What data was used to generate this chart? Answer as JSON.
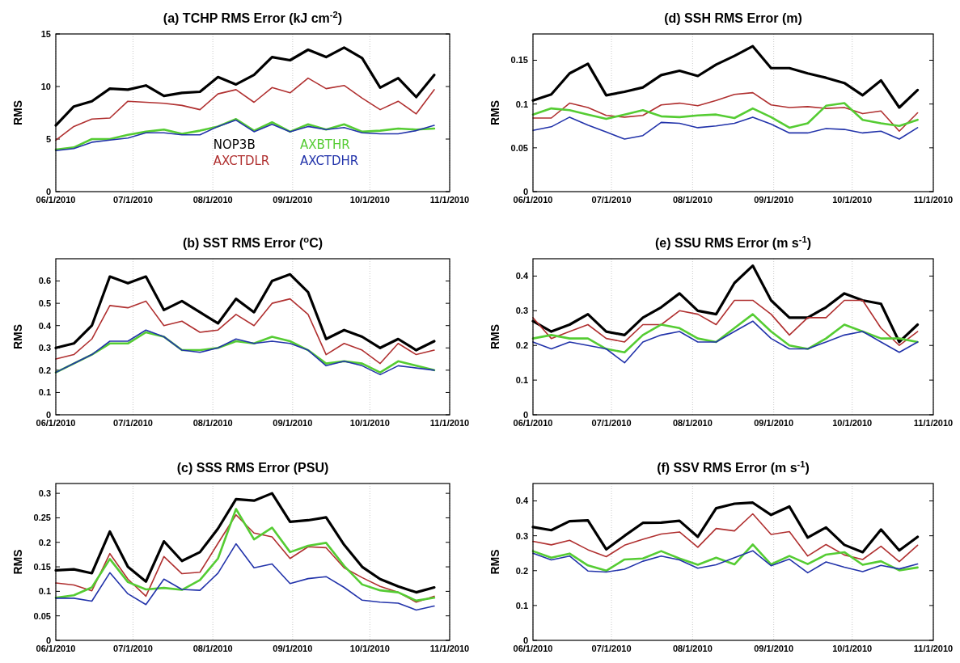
{
  "chart_data": [
    {
      "type": "line",
      "title": "(a) TCHP RMS Error (kJ cm$^{-2}$)",
      "ylabel": "RMS",
      "x": [
        "2010-06-01",
        "2010-06-08",
        "2010-06-15",
        "2010-06-22",
        "2010-06-29",
        "2010-07-06",
        "2010-07-13",
        "2010-07-20",
        "2010-07-27",
        "2010-08-03",
        "2010-08-10",
        "2010-08-17",
        "2010-08-24",
        "2010-08-31",
        "2010-09-07",
        "2010-09-14",
        "2010-09-21",
        "2010-09-28",
        "2010-10-05",
        "2010-10-12",
        "2010-10-19",
        "2010-10-26"
      ],
      "xlim": [
        "2010-06-01",
        "2010-11-01"
      ],
      "xticks": [
        {
          "value": "2010-06-01",
          "label": "06/1/2010"
        },
        {
          "value": "2010-07-01",
          "label": "07/1/2010"
        },
        {
          "value": "2010-08-01",
          "label": "08/1/2010"
        },
        {
          "value": "2010-09-01",
          "label": "09/1/2010"
        },
        {
          "value": "2010-10-01",
          "label": "10/1/2010"
        },
        {
          "value": "2010-11-01",
          "label": "11/1/2010"
        }
      ],
      "ylim": [
        0,
        15
      ],
      "yticks": [
        0,
        5,
        10,
        15
      ],
      "grid": "x",
      "legend": "bottom",
      "series": [
        {
          "name": "NOP3B",
          "color": "#000000",
          "values": [
            6.3,
            8.1,
            8.6,
            9.8,
            9.7,
            10.1,
            9.1,
            9.4,
            9.5,
            10.9,
            10.2,
            11.1,
            12.8,
            12.5,
            13.5,
            12.8,
            13.7,
            12.7,
            9.9,
            10.8,
            9.0,
            11.1
          ]
        },
        {
          "name": "AXCTDLR",
          "color": "#b03030",
          "values": [
            4.9,
            6.2,
            6.9,
            7.0,
            8.6,
            8.5,
            8.4,
            8.2,
            7.8,
            9.3,
            9.7,
            8.5,
            9.9,
            9.4,
            10.8,
            9.8,
            10.1,
            8.9,
            7.8,
            8.6,
            7.4,
            9.7
          ]
        },
        {
          "name": "AXBTHR",
          "color": "#55cc33",
          "values": [
            4.0,
            4.2,
            5.0,
            5.0,
            5.4,
            5.7,
            5.9,
            5.5,
            5.8,
            6.2,
            6.9,
            5.8,
            6.6,
            5.7,
            6.4,
            5.9,
            6.4,
            5.7,
            5.8,
            6.0,
            5.9,
            6.0
          ]
        },
        {
          "name": "AXCTDHR",
          "color": "#2233aa",
          "values": [
            3.9,
            4.1,
            4.7,
            4.9,
            5.1,
            5.6,
            5.6,
            5.4,
            5.4,
            6.2,
            6.8,
            5.7,
            6.4,
            5.7,
            6.2,
            5.9,
            6.1,
            5.6,
            5.5,
            5.5,
            5.8,
            6.3
          ]
        }
      ]
    },
    {
      "type": "line",
      "title": "(d) SSH RMS Error (m)",
      "ylabel": "RMS",
      "x": [
        "2010-06-01",
        "2010-06-08",
        "2010-06-15",
        "2010-06-22",
        "2010-06-29",
        "2010-07-06",
        "2010-07-13",
        "2010-07-20",
        "2010-07-27",
        "2010-08-03",
        "2010-08-10",
        "2010-08-17",
        "2010-08-24",
        "2010-08-31",
        "2010-09-07",
        "2010-09-14",
        "2010-09-21",
        "2010-09-28",
        "2010-10-05",
        "2010-10-12",
        "2010-10-19",
        "2010-10-26"
      ],
      "xlim": [
        "2010-06-01",
        "2010-11-01"
      ],
      "xticks": [
        {
          "value": "2010-06-01",
          "label": "06/1/2010"
        },
        {
          "value": "2010-07-01",
          "label": "07/1/2010"
        },
        {
          "value": "2010-08-01",
          "label": "08/1/2010"
        },
        {
          "value": "2010-09-01",
          "label": "09/1/2010"
        },
        {
          "value": "2010-10-01",
          "label": "10/1/2010"
        },
        {
          "value": "2010-11-01",
          "label": "11/1/2010"
        }
      ],
      "ylim": [
        0,
        0.18
      ],
      "yticks": [
        0,
        0.05,
        0.1,
        0.15
      ],
      "grid": "x",
      "series": [
        {
          "color": "#000000",
          "values": [
            0.104,
            0.111,
            0.135,
            0.146,
            0.11,
            0.114,
            0.119,
            0.133,
            0.138,
            0.132,
            0.145,
            0.155,
            0.166,
            0.141,
            0.141,
            0.135,
            0.13,
            0.124,
            0.11,
            0.127,
            0.096,
            0.116
          ]
        },
        {
          "color": "#b03030",
          "values": [
            0.084,
            0.084,
            0.101,
            0.096,
            0.087,
            0.085,
            0.087,
            0.099,
            0.101,
            0.098,
            0.104,
            0.111,
            0.113,
            0.099,
            0.096,
            0.097,
            0.095,
            0.096,
            0.089,
            0.092,
            0.069,
            0.09
          ]
        },
        {
          "color": "#55cc33",
          "values": [
            0.088,
            0.095,
            0.093,
            0.088,
            0.083,
            0.088,
            0.093,
            0.086,
            0.085,
            0.087,
            0.088,
            0.084,
            0.095,
            0.085,
            0.073,
            0.078,
            0.098,
            0.101,
            0.082,
            0.078,
            0.075,
            0.082
          ]
        },
        {
          "color": "#2233aa",
          "values": [
            0.07,
            0.074,
            0.085,
            0.076,
            0.068,
            0.06,
            0.064,
            0.079,
            0.078,
            0.073,
            0.075,
            0.078,
            0.085,
            0.077,
            0.067,
            0.067,
            0.072,
            0.071,
            0.067,
            0.069,
            0.06,
            0.073
          ]
        }
      ]
    },
    {
      "type": "line",
      "title": "(b) SST RMS Error ($^{o}$C)",
      "ylabel": "RMS",
      "x": [
        "2010-06-01",
        "2010-06-08",
        "2010-06-15",
        "2010-06-22",
        "2010-06-29",
        "2010-07-06",
        "2010-07-13",
        "2010-07-20",
        "2010-07-27",
        "2010-08-03",
        "2010-08-10",
        "2010-08-17",
        "2010-08-24",
        "2010-08-31",
        "2010-09-07",
        "2010-09-14",
        "2010-09-21",
        "2010-09-28",
        "2010-10-05",
        "2010-10-12",
        "2010-10-19",
        "2010-10-26"
      ],
      "xlim": [
        "2010-06-01",
        "2010-11-01"
      ],
      "xticks": [
        {
          "value": "2010-06-01",
          "label": "06/1/2010"
        },
        {
          "value": "2010-07-01",
          "label": "07/1/2010"
        },
        {
          "value": "2010-08-01",
          "label": "08/1/2010"
        },
        {
          "value": "2010-09-01",
          "label": "09/1/2010"
        },
        {
          "value": "2010-10-01",
          "label": "10/1/2010"
        },
        {
          "value": "2010-11-01",
          "label": "11/1/2010"
        }
      ],
      "ylim": [
        0,
        0.7
      ],
      "yticks": [
        0,
        0.1,
        0.2,
        0.3,
        0.4,
        0.5,
        0.6
      ],
      "grid": "x",
      "series": [
        {
          "color": "#000000",
          "values": [
            0.3,
            0.32,
            0.4,
            0.62,
            0.59,
            0.62,
            0.47,
            0.51,
            0.46,
            0.41,
            0.52,
            0.46,
            0.6,
            0.63,
            0.55,
            0.34,
            0.38,
            0.35,
            0.3,
            0.34,
            0.29,
            0.33
          ]
        },
        {
          "color": "#b03030",
          "values": [
            0.25,
            0.27,
            0.34,
            0.49,
            0.48,
            0.51,
            0.4,
            0.42,
            0.37,
            0.38,
            0.45,
            0.4,
            0.5,
            0.52,
            0.45,
            0.27,
            0.32,
            0.29,
            0.23,
            0.32,
            0.27,
            0.29
          ]
        },
        {
          "color": "#55cc33",
          "values": [
            0.19,
            0.23,
            0.27,
            0.32,
            0.32,
            0.37,
            0.35,
            0.29,
            0.29,
            0.3,
            0.33,
            0.32,
            0.35,
            0.33,
            0.29,
            0.23,
            0.24,
            0.23,
            0.19,
            0.24,
            0.22,
            0.2
          ]
        },
        {
          "color": "#2233aa",
          "values": [
            0.19,
            0.23,
            0.27,
            0.33,
            0.33,
            0.38,
            0.35,
            0.29,
            0.28,
            0.3,
            0.34,
            0.32,
            0.33,
            0.32,
            0.29,
            0.22,
            0.24,
            0.22,
            0.18,
            0.22,
            0.21,
            0.2
          ]
        }
      ]
    },
    {
      "type": "line",
      "title": "(e) SSU RMS Error (m s$^{-1}$)",
      "ylabel": "RMS",
      "x": [
        "2010-06-01",
        "2010-06-08",
        "2010-06-15",
        "2010-06-22",
        "2010-06-29",
        "2010-07-06",
        "2010-07-13",
        "2010-07-20",
        "2010-07-27",
        "2010-08-03",
        "2010-08-10",
        "2010-08-17",
        "2010-08-24",
        "2010-08-31",
        "2010-09-07",
        "2010-09-14",
        "2010-09-21",
        "2010-09-28",
        "2010-10-05",
        "2010-10-12",
        "2010-10-19",
        "2010-10-26"
      ],
      "xlim": [
        "2010-06-01",
        "2010-11-01"
      ],
      "xticks": [
        {
          "value": "2010-06-01",
          "label": "06/1/2010"
        },
        {
          "value": "2010-07-01",
          "label": "07/1/2010"
        },
        {
          "value": "2010-08-01",
          "label": "08/1/2010"
        },
        {
          "value": "2010-09-01",
          "label": "09/1/2010"
        },
        {
          "value": "2010-10-01",
          "label": "10/1/2010"
        },
        {
          "value": "2010-11-01",
          "label": "11/1/2010"
        }
      ],
      "ylim": [
        0,
        0.45
      ],
      "yticks": [
        0,
        0.1,
        0.2,
        0.3,
        0.4
      ],
      "grid": "x",
      "series": [
        {
          "color": "#000000",
          "values": [
            0.27,
            0.24,
            0.26,
            0.29,
            0.24,
            0.23,
            0.28,
            0.31,
            0.35,
            0.3,
            0.29,
            0.38,
            0.43,
            0.33,
            0.28,
            0.28,
            0.31,
            0.35,
            0.33,
            0.32,
            0.21,
            0.26
          ]
        },
        {
          "color": "#b03030",
          "values": [
            0.28,
            0.22,
            0.24,
            0.26,
            0.22,
            0.21,
            0.26,
            0.26,
            0.3,
            0.29,
            0.26,
            0.33,
            0.33,
            0.29,
            0.23,
            0.28,
            0.28,
            0.33,
            0.33,
            0.25,
            0.2,
            0.24
          ]
        },
        {
          "color": "#55cc33",
          "values": [
            0.22,
            0.23,
            0.22,
            0.22,
            0.19,
            0.18,
            0.23,
            0.26,
            0.25,
            0.22,
            0.21,
            0.25,
            0.29,
            0.24,
            0.2,
            0.19,
            0.22,
            0.26,
            0.24,
            0.22,
            0.22,
            0.21
          ]
        },
        {
          "color": "#2233aa",
          "values": [
            0.21,
            0.19,
            0.21,
            0.2,
            0.19,
            0.15,
            0.21,
            0.23,
            0.24,
            0.21,
            0.21,
            0.24,
            0.27,
            0.22,
            0.19,
            0.19,
            0.21,
            0.23,
            0.24,
            0.21,
            0.18,
            0.21
          ]
        }
      ]
    },
    {
      "type": "line",
      "title": "(c) SSS RMS Error (PSU)",
      "ylabel": "RMS",
      "x": [
        "2010-06-01",
        "2010-06-08",
        "2010-06-15",
        "2010-06-22",
        "2010-06-29",
        "2010-07-06",
        "2010-07-13",
        "2010-07-20",
        "2010-07-27",
        "2010-08-03",
        "2010-08-10",
        "2010-08-17",
        "2010-08-24",
        "2010-08-31",
        "2010-09-07",
        "2010-09-14",
        "2010-09-21",
        "2010-09-28",
        "2010-10-05",
        "2010-10-12",
        "2010-10-19",
        "2010-10-26"
      ],
      "xlim": [
        "2010-06-01",
        "2010-11-01"
      ],
      "xticks": [
        {
          "value": "2010-06-01",
          "label": "06/1/2010"
        },
        {
          "value": "2010-07-01",
          "label": "07/1/2010"
        },
        {
          "value": "2010-08-01",
          "label": "08/1/2010"
        },
        {
          "value": "2010-09-01",
          "label": "09/1/2010"
        },
        {
          "value": "2010-10-01",
          "label": "10/1/2010"
        },
        {
          "value": "2010-11-01",
          "label": "11/1/2010"
        }
      ],
      "ylim": [
        0,
        0.32
      ],
      "yticks": [
        0,
        0.05,
        0.1,
        0.15,
        0.2,
        0.25,
        0.3
      ],
      "grid": "x",
      "series": [
        {
          "color": "#000000",
          "values": [
            0.143,
            0.145,
            0.137,
            0.222,
            0.15,
            0.12,
            0.202,
            0.162,
            0.18,
            0.228,
            0.288,
            0.285,
            0.3,
            0.242,
            0.245,
            0.251,
            0.195,
            0.15,
            0.125,
            0.11,
            0.098,
            0.108
          ]
        },
        {
          "color": "#b03030",
          "values": [
            0.117,
            0.113,
            0.101,
            0.177,
            0.125,
            0.09,
            0.171,
            0.136,
            0.139,
            0.198,
            0.256,
            0.219,
            0.211,
            0.167,
            0.191,
            0.189,
            0.148,
            0.128,
            0.11,
            0.098,
            0.078,
            0.09
          ]
        },
        {
          "color": "#55cc33",
          "values": [
            0.087,
            0.092,
            0.108,
            0.166,
            0.119,
            0.104,
            0.107,
            0.103,
            0.123,
            0.167,
            0.268,
            0.206,
            0.23,
            0.18,
            0.193,
            0.199,
            0.152,
            0.114,
            0.102,
            0.098,
            0.081,
            0.087
          ]
        },
        {
          "color": "#2233aa",
          "values": [
            0.086,
            0.086,
            0.08,
            0.138,
            0.095,
            0.073,
            0.125,
            0.104,
            0.102,
            0.137,
            0.197,
            0.148,
            0.156,
            0.116,
            0.126,
            0.13,
            0.108,
            0.082,
            0.078,
            0.076,
            0.062,
            0.07
          ]
        }
      ]
    },
    {
      "type": "line",
      "title": "(f) SSV RMS Error (m s$^{-1}$)",
      "ylabel": "RMS",
      "x": [
        "2010-06-01",
        "2010-06-08",
        "2010-06-15",
        "2010-06-22",
        "2010-06-29",
        "2010-07-06",
        "2010-07-13",
        "2010-07-20",
        "2010-07-27",
        "2010-08-03",
        "2010-08-10",
        "2010-08-17",
        "2010-08-24",
        "2010-08-31",
        "2010-09-07",
        "2010-09-14",
        "2010-09-21",
        "2010-09-28",
        "2010-10-05",
        "2010-10-12",
        "2010-10-19",
        "2010-10-26"
      ],
      "xlim": [
        "2010-06-01",
        "2010-11-01"
      ],
      "xticks": [
        {
          "value": "2010-06-01",
          "label": "06/1/2010"
        },
        {
          "value": "2010-07-01",
          "label": "07/1/2010"
        },
        {
          "value": "2010-08-01",
          "label": "08/1/2010"
        },
        {
          "value": "2010-09-01",
          "label": "09/1/2010"
        },
        {
          "value": "2010-10-01",
          "label": "10/1/2010"
        },
        {
          "value": "2010-11-01",
          "label": "11/1/2010"
        }
      ],
      "ylim": [
        0,
        0.45
      ],
      "yticks": [
        0,
        0.1,
        0.2,
        0.3,
        0.4
      ],
      "grid": "x",
      "series": [
        {
          "color": "#000000",
          "values": [
            0.325,
            0.316,
            0.342,
            0.344,
            0.261,
            0.3,
            0.337,
            0.338,
            0.343,
            0.297,
            0.379,
            0.392,
            0.395,
            0.36,
            0.384,
            0.295,
            0.324,
            0.274,
            0.253,
            0.318,
            0.258,
            0.297
          ]
        },
        {
          "color": "#b03030",
          "values": [
            0.284,
            0.274,
            0.287,
            0.26,
            0.24,
            0.273,
            0.29,
            0.305,
            0.311,
            0.267,
            0.321,
            0.314,
            0.363,
            0.304,
            0.312,
            0.242,
            0.275,
            0.245,
            0.232,
            0.27,
            0.226,
            0.273
          ]
        },
        {
          "color": "#55cc33",
          "values": [
            0.256,
            0.237,
            0.249,
            0.215,
            0.2,
            0.232,
            0.235,
            0.256,
            0.235,
            0.217,
            0.237,
            0.218,
            0.275,
            0.218,
            0.242,
            0.219,
            0.246,
            0.253,
            0.217,
            0.227,
            0.201,
            0.209
          ]
        },
        {
          "color": "#2233aa",
          "values": [
            0.25,
            0.231,
            0.242,
            0.199,
            0.196,
            0.204,
            0.227,
            0.242,
            0.231,
            0.207,
            0.217,
            0.237,
            0.257,
            0.214,
            0.233,
            0.194,
            0.225,
            0.21,
            0.197,
            0.215,
            0.205,
            0.219
          ]
        }
      ]
    }
  ]
}
